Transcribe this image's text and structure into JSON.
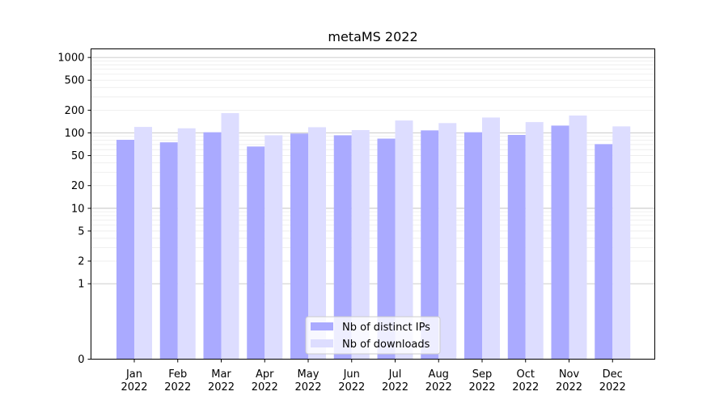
{
  "chart_data": {
    "type": "bar",
    "title": "metaMS 2022",
    "xlabel": "",
    "ylabel": "",
    "scale": "symlog",
    "ylim": [
      0,
      1300
    ],
    "yticks": [
      0,
      1,
      2,
      5,
      10,
      20,
      50,
      100,
      200,
      500,
      1000
    ],
    "ytick_labels": [
      "0",
      "1",
      "2",
      "5",
      "10",
      "20",
      "50",
      "100",
      "200",
      "500",
      "1000"
    ],
    "categories": [
      "Jan",
      "Feb",
      "Mar",
      "Apr",
      "May",
      "Jun",
      "Jul",
      "Aug",
      "Sep",
      "Oct",
      "Nov",
      "Dec"
    ],
    "category_years": [
      "2022",
      "2022",
      "2022",
      "2022",
      "2022",
      "2022",
      "2022",
      "2022",
      "2022",
      "2022",
      "2022",
      "2022"
    ],
    "series": [
      {
        "name": "Nb of distinct IPs",
        "color": "#aaaaff",
        "values": [
          81,
          75,
          102,
          66,
          98,
          93,
          84,
          108,
          102,
          94,
          125,
          71
        ]
      },
      {
        "name": "Nb of downloads",
        "color": "#ddddff",
        "values": [
          120,
          115,
          183,
          93,
          119,
          109,
          146,
          135,
          160,
          139,
          170,
          122
        ]
      }
    ],
    "grid": true,
    "legend_position": "bottom-center"
  }
}
